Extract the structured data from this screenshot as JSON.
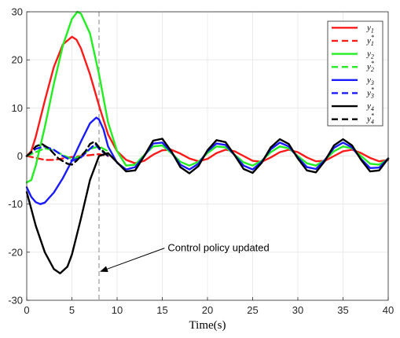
{
  "chart_data": {
    "type": "line",
    "title": "",
    "xlabel": "Time(s)",
    "ylabel": "",
    "xlim": [
      0,
      40
    ],
    "ylim": [
      -30,
      30
    ],
    "xticks": [
      0,
      5,
      10,
      15,
      20,
      25,
      30,
      35,
      40
    ],
    "yticks": [
      -30,
      -20,
      -10,
      0,
      10,
      20,
      30
    ],
    "grid": true,
    "legend_position": "top-right",
    "series": [
      {
        "name": "y1",
        "legend_main": "y",
        "legend_sub": "1",
        "legend_sup": "",
        "color": "#ff1a1a",
        "dash": "solid",
        "points": [
          [
            0,
            0
          ],
          [
            0.5,
            1
          ],
          [
            1,
            4
          ],
          [
            2,
            11.5
          ],
          [
            3,
            18.5
          ],
          [
            4,
            23.2
          ],
          [
            5,
            24.8
          ],
          [
            5.5,
            24.2
          ],
          [
            6,
            22.4
          ],
          [
            7,
            17
          ],
          [
            8,
            10.5
          ],
          [
            9,
            4.5
          ],
          [
            10,
            1
          ],
          [
            11,
            -0.8
          ],
          [
            12,
            -1.5
          ],
          [
            13,
            -1
          ],
          [
            14,
            0.3
          ],
          [
            15,
            1.2
          ],
          [
            16,
            1.3
          ],
          [
            17,
            0.5
          ],
          [
            18,
            -0.5
          ],
          [
            19,
            -1.1
          ],
          [
            20,
            -0.6
          ],
          [
            21,
            0.6
          ],
          [
            22,
            1.3
          ],
          [
            23,
            1
          ],
          [
            24,
            0
          ],
          [
            25,
            -1
          ],
          [
            26,
            -1.2
          ],
          [
            27,
            -0.3
          ],
          [
            28,
            0.8
          ],
          [
            29,
            1.3
          ],
          [
            30,
            0.8
          ],
          [
            31,
            -0.3
          ],
          [
            32,
            -1.1
          ],
          [
            33,
            -1
          ],
          [
            34,
            0
          ],
          [
            35,
            1
          ],
          [
            36,
            1.3
          ],
          [
            37,
            0.6
          ],
          [
            38,
            -0.4
          ],
          [
            39,
            -1.1
          ],
          [
            40,
            -0.8
          ]
        ]
      },
      {
        "name": "y1*",
        "legend_main": "y",
        "legend_sub": "1",
        "legend_sup": "*",
        "color": "#ff1a1a",
        "dash": "dashed",
        "points": [
          [
            0,
            0
          ],
          [
            1,
            -0.4
          ],
          [
            2,
            -0.8
          ],
          [
            3,
            -0.8
          ],
          [
            4,
            -0.5
          ],
          [
            5,
            -0.2
          ],
          [
            6,
            0
          ],
          [
            7,
            0.2
          ],
          [
            8,
            0.4
          ],
          [
            9,
            0
          ]
        ]
      },
      {
        "name": "y2",
        "legend_main": "y",
        "legend_sub": "2",
        "legend_sup": "",
        "color": "#22ee22",
        "dash": "solid",
        "points": [
          [
            0,
            -5.5
          ],
          [
            0.5,
            -5
          ],
          [
            1,
            -2
          ],
          [
            2,
            6
          ],
          [
            3,
            15
          ],
          [
            4,
            23
          ],
          [
            5,
            28.5
          ],
          [
            5.6,
            30
          ],
          [
            6,
            29.6
          ],
          [
            7,
            25.5
          ],
          [
            8,
            17
          ],
          [
            9,
            7
          ],
          [
            10,
            1
          ],
          [
            11,
            -2
          ],
          [
            12,
            -1.8
          ],
          [
            13,
            0.2
          ],
          [
            14,
            2
          ],
          [
            15,
            2.2
          ],
          [
            16,
            0.6
          ],
          [
            17,
            -1.2
          ],
          [
            18,
            -2
          ],
          [
            19,
            -1.2
          ],
          [
            20,
            0.6
          ],
          [
            21,
            2
          ],
          [
            22,
            1.8
          ],
          [
            23,
            0.3
          ],
          [
            24,
            -1.3
          ],
          [
            25,
            -2
          ],
          [
            26,
            -1
          ],
          [
            27,
            0.8
          ],
          [
            28,
            2
          ],
          [
            29,
            1.6
          ],
          [
            30,
            0
          ],
          [
            31,
            -1.5
          ],
          [
            32,
            -2
          ],
          [
            33,
            -0.8
          ],
          [
            34,
            1
          ],
          [
            35,
            2
          ],
          [
            36,
            1.6
          ],
          [
            37,
            0
          ],
          [
            38,
            -1.6
          ],
          [
            39,
            -1.8
          ],
          [
            40,
            -0.6
          ]
        ]
      },
      {
        "name": "y2*",
        "legend_main": "y",
        "legend_sub": "2",
        "legend_sup": "*",
        "color": "#22ee22",
        "dash": "dashed",
        "points": [
          [
            0,
            0
          ],
          [
            1,
            0.8
          ],
          [
            2,
            1.6
          ],
          [
            3,
            1.2
          ],
          [
            4,
            0.2
          ],
          [
            5,
            -0.6
          ],
          [
            6,
            0
          ],
          [
            7,
            1.5
          ],
          [
            8,
            2
          ],
          [
            9,
            1
          ]
        ]
      },
      {
        "name": "y3",
        "legend_main": "y",
        "legend_sub": "3",
        "legend_sup": "",
        "color": "#1a1aff",
        "dash": "solid",
        "points": [
          [
            0,
            -6.5
          ],
          [
            0.5,
            -8.5
          ],
          [
            1,
            -9.6
          ],
          [
            1.5,
            -10
          ],
          [
            2,
            -9.7
          ],
          [
            3,
            -7.6
          ],
          [
            4,
            -4.6
          ],
          [
            5,
            -1
          ],
          [
            6,
            3
          ],
          [
            7,
            6.8
          ],
          [
            7.7,
            8
          ],
          [
            8,
            7.6
          ],
          [
            8.5,
            5.5
          ],
          [
            9,
            2
          ],
          [
            10,
            -1.4
          ],
          [
            11,
            -2.8
          ],
          [
            12,
            -2.3
          ],
          [
            13,
            0
          ],
          [
            14,
            2.6
          ],
          [
            15,
            2.8
          ],
          [
            16,
            0.8
          ],
          [
            17,
            -1.8
          ],
          [
            18,
            -2.8
          ],
          [
            19,
            -1.6
          ],
          [
            20,
            1
          ],
          [
            21,
            2.6
          ],
          [
            22,
            2.3
          ],
          [
            23,
            0.2
          ],
          [
            24,
            -2
          ],
          [
            25,
            -2.8
          ],
          [
            26,
            -1.2
          ],
          [
            27,
            1.4
          ],
          [
            28,
            2.8
          ],
          [
            29,
            2
          ],
          [
            30,
            -0.3
          ],
          [
            31,
            -2.3
          ],
          [
            32,
            -2.7
          ],
          [
            33,
            -0.8
          ],
          [
            34,
            1.7
          ],
          [
            35,
            2.8
          ],
          [
            36,
            1.8
          ],
          [
            37,
            -0.6
          ],
          [
            38,
            -2.5
          ],
          [
            39,
            -2.4
          ],
          [
            40,
            -0.5
          ]
        ]
      },
      {
        "name": "y3*",
        "legend_main": "y",
        "legend_sub": "3",
        "legend_sup": "*",
        "color": "#1a1aff",
        "dash": "dashed",
        "points": [
          [
            0,
            0
          ],
          [
            1,
            1.5
          ],
          [
            2,
            2
          ],
          [
            3,
            1.3
          ],
          [
            4,
            0
          ],
          [
            5,
            -1
          ],
          [
            6,
            -0.3
          ],
          [
            7,
            1.5
          ],
          [
            7.6,
            2.5
          ],
          [
            8,
            1.5
          ],
          [
            9,
            0
          ]
        ]
      },
      {
        "name": "y4",
        "legend_main": "y",
        "legend_sub": "4",
        "legend_sup": "",
        "color": "#000000",
        "dash": "solid",
        "points": [
          [
            0,
            -7.5
          ],
          [
            0.5,
            -11
          ],
          [
            1,
            -14.5
          ],
          [
            2,
            -20
          ],
          [
            3,
            -23.5
          ],
          [
            3.7,
            -24.4
          ],
          [
            4.5,
            -23
          ],
          [
            5,
            -20.5
          ],
          [
            6,
            -13
          ],
          [
            7,
            -5
          ],
          [
            8,
            0
          ],
          [
            9,
            0.6
          ],
          [
            10,
            -1.3
          ],
          [
            11,
            -3.2
          ],
          [
            12,
            -3
          ],
          [
            13,
            0
          ],
          [
            14,
            3.2
          ],
          [
            15,
            3.6
          ],
          [
            16,
            1
          ],
          [
            17,
            -2.3
          ],
          [
            18,
            -3.6
          ],
          [
            19,
            -2.1
          ],
          [
            20,
            1.2
          ],
          [
            21,
            3.3
          ],
          [
            22,
            2.9
          ],
          [
            23,
            0.2
          ],
          [
            24,
            -2.7
          ],
          [
            25,
            -3.5
          ],
          [
            26,
            -1.4
          ],
          [
            27,
            1.8
          ],
          [
            28,
            3.5
          ],
          [
            29,
            2.5
          ],
          [
            30,
            -0.5
          ],
          [
            31,
            -3
          ],
          [
            32,
            -3.4
          ],
          [
            33,
            -1
          ],
          [
            34,
            2.2
          ],
          [
            35,
            3.5
          ],
          [
            36,
            2.2
          ],
          [
            37,
            -0.8
          ],
          [
            38,
            -3.2
          ],
          [
            39,
            -3
          ],
          [
            40,
            -0.5
          ]
        ]
      },
      {
        "name": "y4*",
        "legend_main": "y",
        "legend_sub": "4",
        "legend_sup": "*",
        "color": "#000000",
        "dash": "dashed",
        "points": [
          [
            0,
            0
          ],
          [
            0.5,
            0.8
          ],
          [
            1,
            2
          ],
          [
            1.7,
            2.5
          ],
          [
            2.5,
            1.5
          ],
          [
            3.5,
            -0.5
          ],
          [
            4.5,
            -1.6
          ],
          [
            5,
            -1.8
          ],
          [
            5.5,
            -1
          ],
          [
            6.5,
            1
          ],
          [
            7,
            2.5
          ],
          [
            7.5,
            3
          ],
          [
            8,
            1.8
          ],
          [
            9,
            0
          ]
        ]
      }
    ],
    "vline": {
      "x": 8,
      "color": "#9a9a9a",
      "dash": "dashed"
    },
    "annotation": {
      "text": "Control policy updated",
      "x": 8,
      "y": -24,
      "text_x": 15.6,
      "text_y": -19.8
    }
  }
}
